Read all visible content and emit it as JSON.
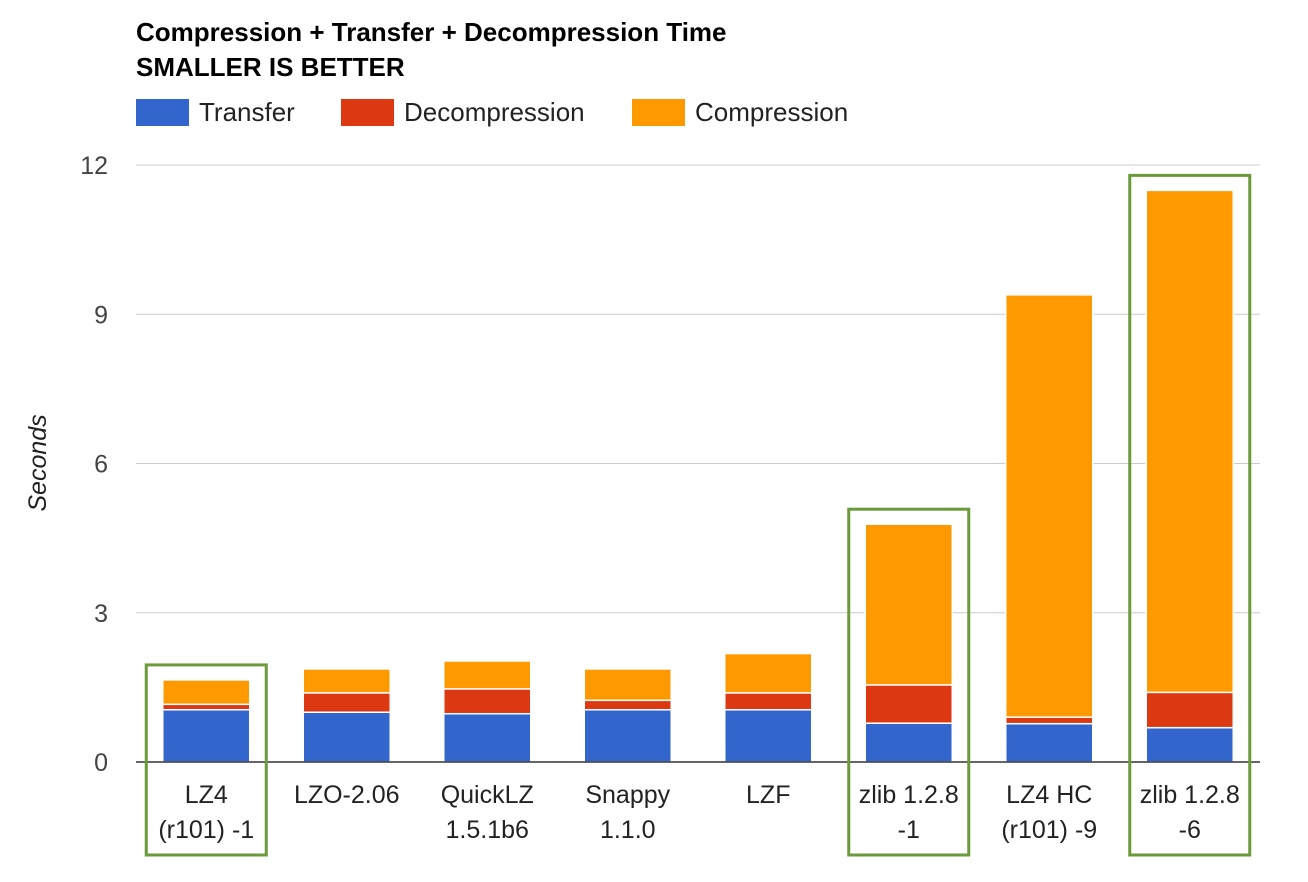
{
  "chart_data": {
    "type": "bar",
    "stacked": true,
    "title": "Compression + Transfer + Decompression Time",
    "subtitle": "SMALLER IS BETTER",
    "xlabel": "",
    "ylabel": "Seconds",
    "ylim": [
      0,
      12
    ],
    "yticks": [
      "0",
      "3",
      "6",
      "9",
      "12"
    ],
    "grid": true,
    "legend_position": "top",
    "categories": [
      [
        "LZ4",
        "(r101) -1"
      ],
      [
        "LZO-2.06"
      ],
      [
        "QuickLZ",
        "1.5.1b6"
      ],
      [
        "Snappy",
        "1.1.0"
      ],
      [
        "LZF"
      ],
      [
        "zlib 1.2.8",
        "-1"
      ],
      [
        "LZ4 HC",
        "(r101) -9"
      ],
      [
        "zlib 1.2.8",
        "-6"
      ]
    ],
    "series": [
      {
        "name": "Transfer",
        "color": "#3366cc",
        "values": [
          1.05,
          1.0,
          0.97,
          1.05,
          1.05,
          0.78,
          0.77,
          0.69
        ]
      },
      {
        "name": "Decompression",
        "color": "#dc3912",
        "values": [
          0.11,
          0.39,
          0.5,
          0.19,
          0.34,
          0.77,
          0.13,
          0.71
        ]
      },
      {
        "name": "Compression",
        "color": "#ff9900",
        "values": [
          0.49,
          0.48,
          0.56,
          0.63,
          0.79,
          3.23,
          8.49,
          10.09
        ]
      }
    ],
    "highlighted_categories": [
      0,
      5,
      7
    ],
    "highlight_color": "#6a9a3a"
  }
}
